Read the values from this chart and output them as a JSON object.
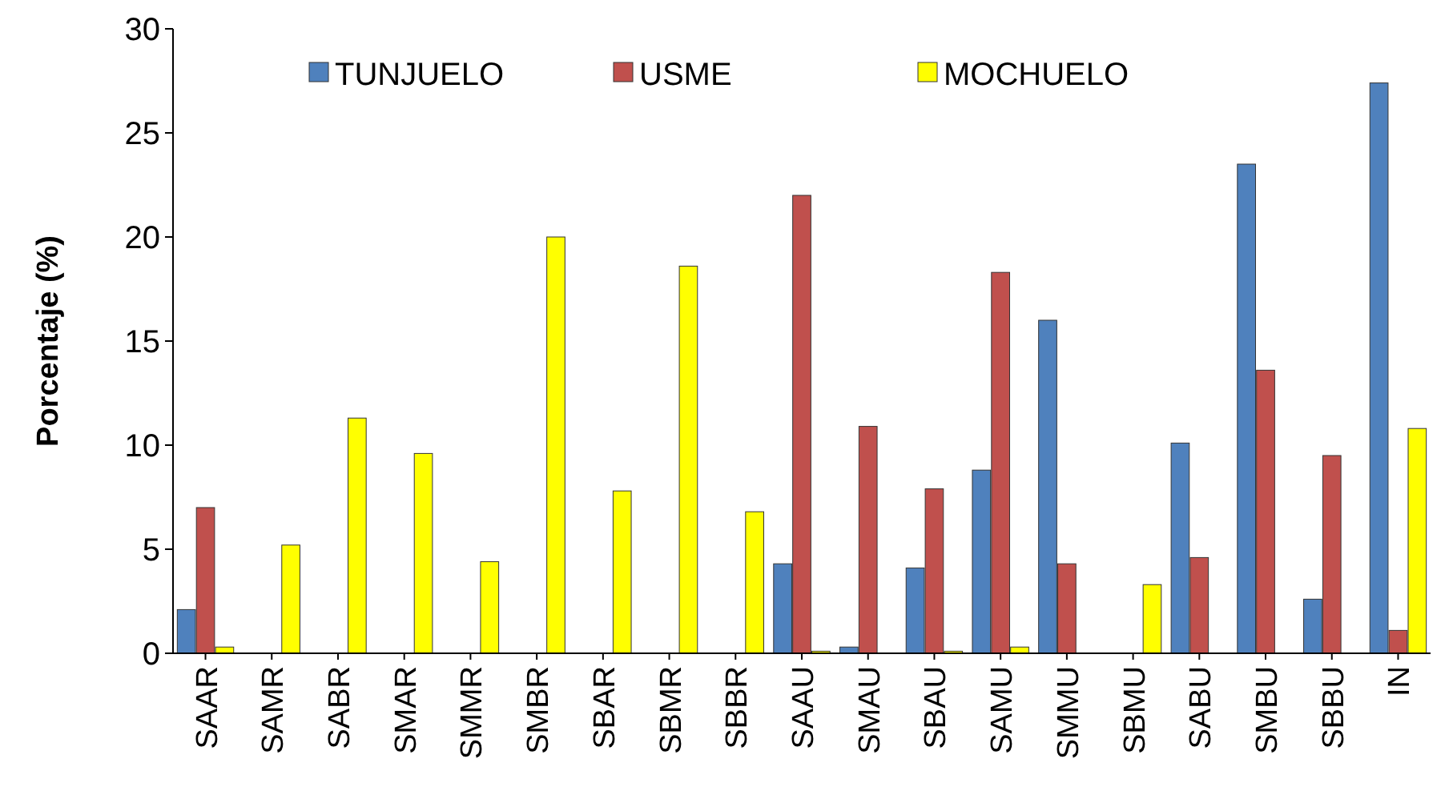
{
  "chart_data": {
    "type": "bar",
    "ylabel": "Porcentaje (%)",
    "categories": [
      "SAAR",
      "SAMR",
      "SABR",
      "SMAR",
      "SMMR",
      "SMBR",
      "SBAR",
      "SBMR",
      "SBBR",
      "SAAU",
      "SMAU",
      "SBAU",
      "SAMU",
      "SMMU",
      "SBMU",
      "SABU",
      "SMBU",
      "SBBU",
      "IN"
    ],
    "series": [
      {
        "name": "TUNJUELO",
        "color": "#4f81bd",
        "values": [
          2.1,
          0,
          0,
          0,
          0,
          0,
          0,
          0,
          0,
          4.3,
          0.3,
          4.1,
          8.8,
          16.0,
          0,
          10.1,
          23.5,
          2.6,
          27.4
        ]
      },
      {
        "name": "USME",
        "color": "#c0504d",
        "values": [
          7.0,
          0,
          0,
          0,
          0,
          0,
          0,
          0,
          0,
          22.0,
          10.9,
          7.9,
          18.3,
          4.3,
          0,
          4.6,
          13.6,
          9.5,
          1.1
        ]
      },
      {
        "name": "MOCHUELO",
        "color": "#ffff00",
        "values": [
          0.3,
          5.2,
          11.3,
          9.6,
          4.4,
          20.0,
          7.8,
          18.6,
          6.8,
          0.1,
          0,
          0.1,
          0.3,
          0,
          3.3,
          0,
          0,
          0,
          10.8
        ]
      }
    ],
    "ylim": [
      0,
      30
    ],
    "yticks": [
      0,
      5,
      10,
      15,
      20,
      25,
      30
    ],
    "legend": "top",
    "grid": false
  }
}
